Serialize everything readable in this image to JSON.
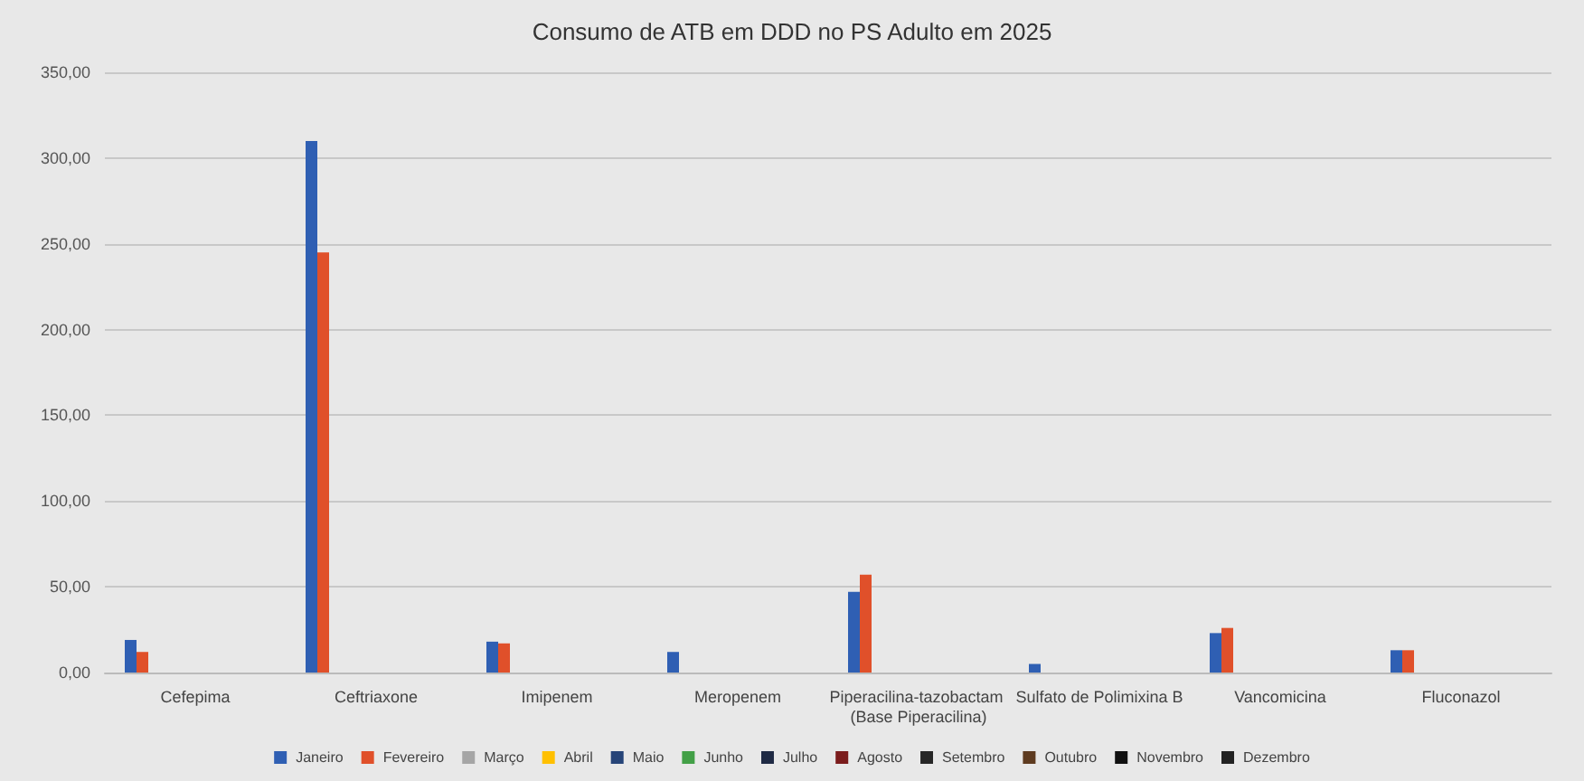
{
  "chart_data": {
    "type": "bar",
    "title": "Consumo de ATB em DDD no PS Adulto em 2025",
    "categories": [
      "Cefepima",
      "Ceftriaxone",
      "Imipenem",
      "Meropenem",
      "Piperacilina-tazobactam (Base Piperacilina)",
      "Sulfato de Polimixina B",
      "Vancomicina",
      "Fluconazol"
    ],
    "series": [
      {
        "name": "Janeiro",
        "color": "#2f5fb3",
        "values": [
          19,
          310,
          18,
          12,
          47,
          5,
          23,
          13
        ]
      },
      {
        "name": "Fevereiro",
        "color": "#e0502a",
        "values": [
          12,
          245,
          17,
          null,
          57,
          null,
          26,
          13
        ]
      },
      {
        "name": "Março",
        "color": "#a5a5a5",
        "values": [
          null,
          null,
          null,
          null,
          null,
          null,
          null,
          null
        ]
      },
      {
        "name": "Abril",
        "color": "#ffc000",
        "values": [
          null,
          null,
          null,
          null,
          null,
          null,
          null,
          null
        ]
      },
      {
        "name": "Maio",
        "color": "#264478",
        "values": [
          null,
          null,
          null,
          null,
          null,
          null,
          null,
          null
        ]
      },
      {
        "name": "Junho",
        "color": "#43a047",
        "values": [
          null,
          null,
          null,
          null,
          null,
          null,
          null,
          null
        ]
      },
      {
        "name": "Julho",
        "color": "#1f2a44",
        "values": [
          null,
          null,
          null,
          null,
          null,
          null,
          null,
          null
        ]
      },
      {
        "name": "Agosto",
        "color": "#7b1c1c",
        "values": [
          null,
          null,
          null,
          null,
          null,
          null,
          null,
          null
        ]
      },
      {
        "name": "Setembro",
        "color": "#262626",
        "values": [
          null,
          null,
          null,
          null,
          null,
          null,
          null,
          null
        ]
      },
      {
        "name": "Outubro",
        "color": "#5e3b20",
        "values": [
          null,
          null,
          null,
          null,
          null,
          null,
          null,
          null
        ]
      },
      {
        "name": "Novembro",
        "color": "#111111",
        "values": [
          null,
          null,
          null,
          null,
          null,
          null,
          null,
          null
        ]
      },
      {
        "name": "Dezembro",
        "color": "#222222",
        "values": [
          null,
          null,
          null,
          null,
          null,
          null,
          null,
          null
        ]
      }
    ],
    "ylim": [
      0,
      350
    ],
    "yticks": [
      {
        "value": 0,
        "label": "0,00"
      },
      {
        "value": 50,
        "label": "50,00"
      },
      {
        "value": 100,
        "label": "100,00"
      },
      {
        "value": 150,
        "label": "150,00"
      },
      {
        "value": 200,
        "label": "200,00"
      },
      {
        "value": 250,
        "label": "250,00"
      },
      {
        "value": 300,
        "label": "300,00"
      },
      {
        "value": 350,
        "label": "350,00"
      }
    ],
    "grid": "y",
    "legend": "bottom"
  }
}
